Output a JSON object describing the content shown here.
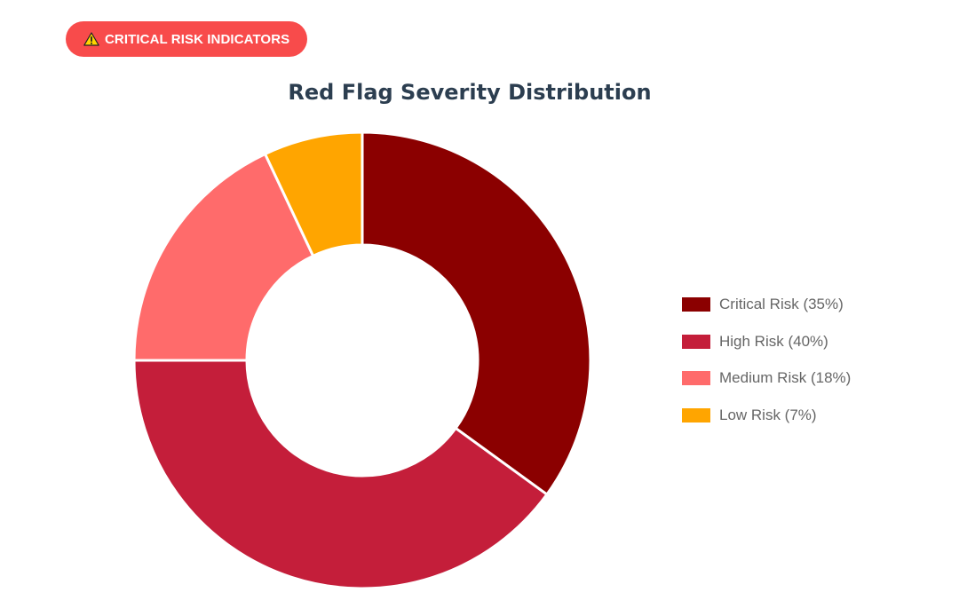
{
  "badge": {
    "label": "CRITICAL RISK INDICATORS",
    "icon": "warning-icon",
    "color": "#f84b4b"
  },
  "chart_data": {
    "type": "pie",
    "variant": "doughnut",
    "title": "Red Flag Severity Distribution",
    "categories": [
      "Critical Risk",
      "High Risk",
      "Medium Risk",
      "Low Risk"
    ],
    "values": [
      35,
      40,
      18,
      7
    ],
    "colors": [
      "#8b0000",
      "#c41e3a",
      "#ff6b6b",
      "#ffa500"
    ],
    "legend_labels": [
      "Critical Risk (35%)",
      "High Risk (40%)",
      "Medium Risk (18%)",
      "Low Risk (7%)"
    ],
    "legend_position": "right",
    "start_angle": "top",
    "direction": "clockwise"
  }
}
